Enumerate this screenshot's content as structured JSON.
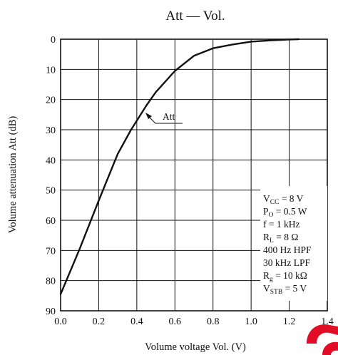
{
  "chart_data": {
    "type": "line",
    "title": "Att — Vol.",
    "xlabel": "Volume voltage  Vol.  (V)",
    "ylabel": "Volume attenuation  Att  (dB)",
    "xlim": [
      0.0,
      1.4
    ],
    "ylim": [
      0,
      90
    ],
    "y_inverted": true,
    "grid": true,
    "x_ticks": [
      "0.0",
      "0.2",
      "0.4",
      "0.6",
      "0.8",
      "1.0",
      "1.2",
      "1.4"
    ],
    "x_tick_values": [
      0.0,
      0.2,
      0.4,
      0.6,
      0.8,
      1.0,
      1.2,
      1.4
    ],
    "y_ticks": [
      "0",
      "10",
      "20",
      "30",
      "40",
      "50",
      "60",
      "70",
      "80",
      "90"
    ],
    "y_tick_values": [
      0,
      10,
      20,
      30,
      40,
      50,
      60,
      70,
      80,
      90
    ],
    "series": [
      {
        "name": "Att",
        "x": [
          0.0,
          0.1,
          0.2,
          0.3,
          0.37,
          0.45,
          0.5,
          0.6,
          0.7,
          0.8,
          0.9,
          1.0,
          1.1,
          1.2,
          1.25
        ],
        "y": [
          84.5,
          69.5,
          53.5,
          38,
          30,
          22,
          17.5,
          10.5,
          5.5,
          3,
          1.8,
          0.8,
          0.4,
          0.1,
          0
        ]
      }
    ],
    "annotation": "Att",
    "conditions": [
      {
        "main": "V",
        "sub": "CC",
        "rest": " = 8 V"
      },
      {
        "main": "P",
        "sub": "O",
        "rest": " = 0.5 W"
      },
      {
        "main": "f = 1 kHz",
        "sub": "",
        "rest": ""
      },
      {
        "main": "R",
        "sub": "L",
        "rest": " = 8 Ω"
      },
      {
        "main": "400 Hz HPF",
        "sub": "",
        "rest": ""
      },
      {
        "main": "30 kHz LPF",
        "sub": "",
        "rest": ""
      },
      {
        "main": "R",
        "sub": "g",
        "rest": " = 10 kΩ"
      },
      {
        "main": "V",
        "sub": "STB",
        "rest": " = 5 V"
      }
    ]
  }
}
